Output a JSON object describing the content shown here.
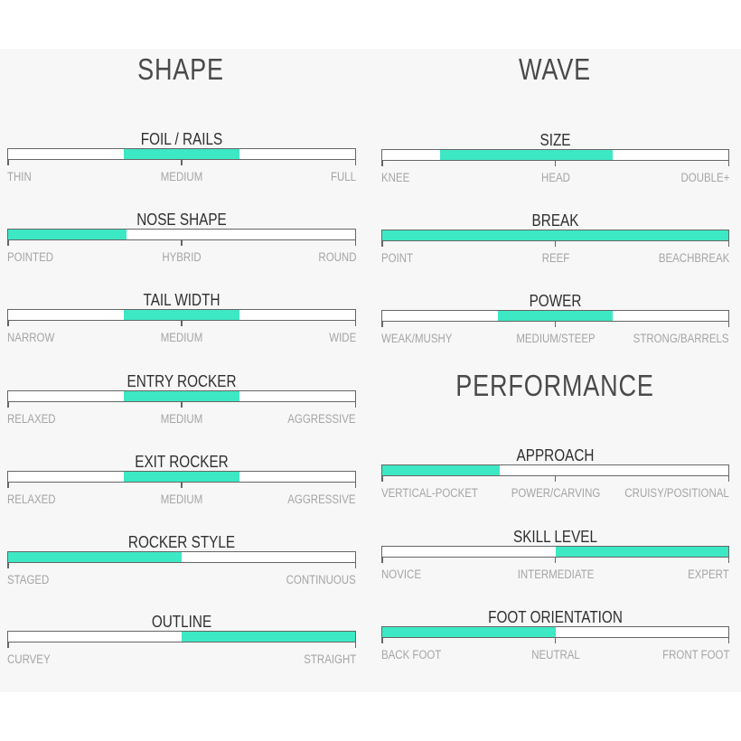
{
  "colors": {
    "fill": "#3de8c4",
    "frame": "#666666",
    "background": "#f7f7f7"
  },
  "sections": [
    {
      "title": "SHAPE",
      "rows": [
        {
          "title": "FOIL / RAILS",
          "labels": [
            "THIN",
            "MEDIUM",
            "FULL"
          ],
          "range": [
            0.333,
            0.667
          ]
        },
        {
          "title": "NOSE SHAPE",
          "labels": [
            "POINTED",
            "HYBRID",
            "ROUND"
          ],
          "range": [
            0,
            0.34
          ]
        },
        {
          "title": "TAIL WIDTH",
          "labels": [
            "NARROW",
            "MEDIUM",
            "WIDE"
          ],
          "range": [
            0.333,
            0.667
          ]
        },
        {
          "title": "ENTRY ROCKER",
          "labels": [
            "RELAXED",
            "MEDIUM",
            "AGGRESSIVE"
          ],
          "range": [
            0.333,
            0.667
          ]
        },
        {
          "title": "EXIT ROCKER",
          "labels": [
            "RELAXED",
            "MEDIUM",
            "AGGRESSIVE"
          ],
          "range": [
            0.333,
            0.667
          ]
        },
        {
          "title": "ROCKER STYLE",
          "labels": [
            "STAGED",
            "",
            "CONTINUOUS"
          ],
          "range": [
            0,
            0.5
          ]
        },
        {
          "title": "OUTLINE",
          "labels": [
            "CURVEY",
            "",
            "STRAIGHT"
          ],
          "range": [
            0.5,
            1
          ]
        }
      ]
    },
    {
      "title": "WAVE",
      "rows": [
        {
          "title": "SIZE",
          "labels": [
            "KNEE",
            "HEAD",
            "DOUBLE+"
          ],
          "range": [
            0.167,
            0.667
          ]
        },
        {
          "title": "BREAK",
          "labels": [
            "POINT",
            "REEF",
            "BEACHBREAK"
          ],
          "range": [
            0,
            1
          ]
        },
        {
          "title": "POWER",
          "labels": [
            "WEAK/MUSHY",
            "MEDIUM/STEEP",
            "STRONG/BARRELS"
          ],
          "range": [
            0.333,
            0.667
          ]
        }
      ]
    },
    {
      "title": "PERFORMANCE",
      "rows": [
        {
          "title": "APPROACH",
          "labels": [
            "VERTICAL-POCKET",
            "POWER/CARVING",
            "CRUISY/POSITIONAL"
          ],
          "range": [
            0,
            0.34
          ]
        },
        {
          "title": "SKILL LEVEL",
          "labels": [
            "NOVICE",
            "INTERMEDIATE",
            "EXPERT"
          ],
          "range": [
            0.5,
            1
          ]
        },
        {
          "title": "FOOT ORIENTATION",
          "labels": [
            "BACK FOOT",
            "NEUTRAL",
            "FRONT FOOT"
          ],
          "range": [
            0,
            0.5
          ]
        }
      ]
    }
  ]
}
